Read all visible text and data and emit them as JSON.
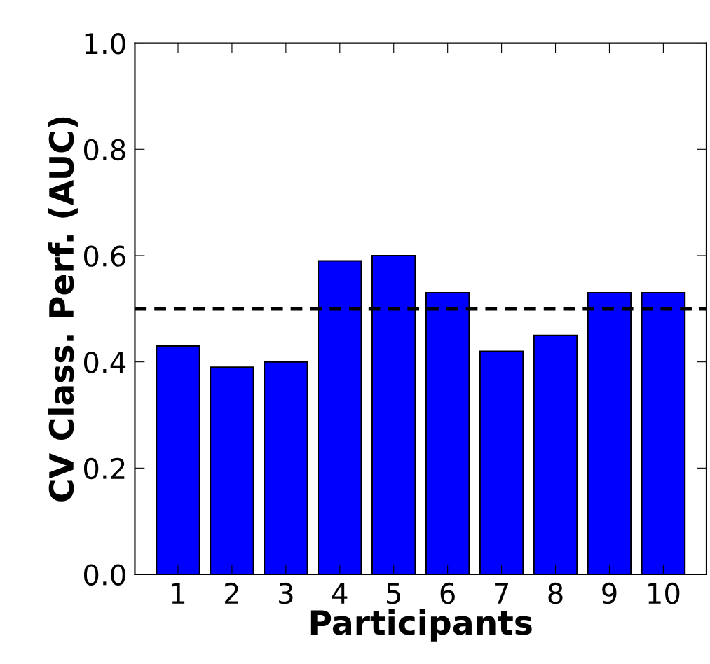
{
  "chart_data": {
    "type": "bar",
    "xlabel": "Participants",
    "ylabel": "CV Class. Perf. (AUC)",
    "categories": [
      "1",
      "2",
      "3",
      "4",
      "5",
      "6",
      "7",
      "8",
      "9",
      "10"
    ],
    "values": [
      0.43,
      0.39,
      0.4,
      0.59,
      0.6,
      0.53,
      0.42,
      0.45,
      0.53,
      0.53
    ],
    "color": "#0000ff",
    "ylim": [
      0,
      1.0
    ],
    "yticks": [
      {
        "value": 0,
        "label": "0.0"
      },
      {
        "value": 0.2,
        "label": "0.2"
      },
      {
        "value": 0.4,
        "label": "0.4"
      },
      {
        "value": 0.6,
        "label": "0.6"
      },
      {
        "value": 0.8,
        "label": "0.8"
      },
      {
        "value": 1.0,
        "label": "1.0"
      }
    ],
    "ref_lines": [
      {
        "axis": "y",
        "value": 0.5,
        "label": null,
        "color": "#000000",
        "line_style": "dashed"
      }
    ],
    "grid": false,
    "legend": false
  }
}
